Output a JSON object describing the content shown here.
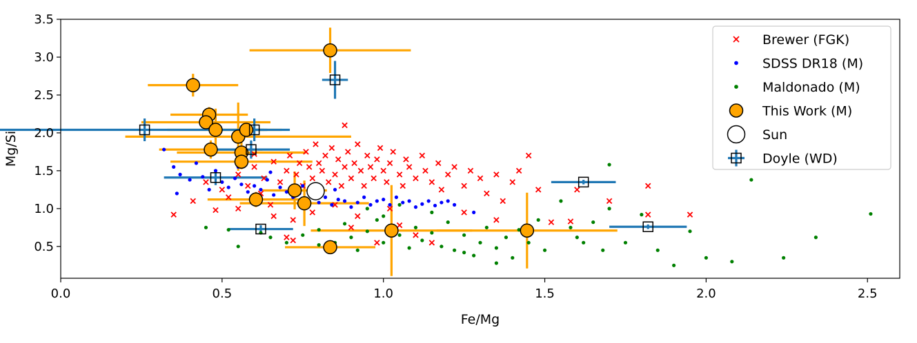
{
  "chart_data": {
    "type": "scatter",
    "title": "",
    "xlabel": "Fe/Mg",
    "ylabel": "Mg/Si",
    "xlim": [
      0.0,
      2.6
    ],
    "ylim": [
      0.08,
      3.5
    ],
    "xticks": [
      "0.0",
      "0.5",
      "1.0",
      "1.5",
      "2.0",
      "2.5"
    ],
    "yticks": [
      "0.5",
      "1.0",
      "1.5",
      "2.0",
      "2.5",
      "3.0",
      "3.5"
    ],
    "grid": false,
    "legend_placement": "top-right",
    "series": [
      {
        "name": "Brewer (FGK)",
        "marker": "x",
        "color": "#ff0000",
        "points": [
          [
            0.35,
            0.92
          ],
          [
            0.41,
            1.1
          ],
          [
            0.45,
            1.35
          ],
          [
            0.48,
            0.98
          ],
          [
            0.5,
            1.25
          ],
          [
            0.52,
            1.15
          ],
          [
            0.55,
            1.45
          ],
          [
            0.58,
            1.3
          ],
          [
            0.6,
            1.55
          ],
          [
            0.62,
            1.2
          ],
          [
            0.63,
            1.4
          ],
          [
            0.65,
            1.05
          ],
          [
            0.66,
            1.62
          ],
          [
            0.68,
            1.35
          ],
          [
            0.7,
            1.5
          ],
          [
            0.71,
            1.7
          ],
          [
            0.72,
            1.2
          ],
          [
            0.73,
            1.45
          ],
          [
            0.74,
            1.6
          ],
          [
            0.75,
            1.3
          ],
          [
            0.76,
            1.75
          ],
          [
            0.77,
            1.55
          ],
          [
            0.78,
            1.4
          ],
          [
            0.79,
            1.85
          ],
          [
            0.8,
            1.25
          ],
          [
            0.8,
            1.6
          ],
          [
            0.81,
            1.5
          ],
          [
            0.82,
            1.7
          ],
          [
            0.83,
            1.35
          ],
          [
            0.84,
            1.8
          ],
          [
            0.85,
            1.45
          ],
          [
            0.86,
            1.65
          ],
          [
            0.87,
            1.3
          ],
          [
            0.88,
            1.55
          ],
          [
            0.88,
            2.1
          ],
          [
            0.89,
            1.75
          ],
          [
            0.9,
            1.4
          ],
          [
            0.91,
            1.6
          ],
          [
            0.92,
            1.85
          ],
          [
            0.93,
            1.5
          ],
          [
            0.94,
            1.3
          ],
          [
            0.95,
            1.7
          ],
          [
            0.96,
            1.55
          ],
          [
            0.97,
            1.4
          ],
          [
            0.98,
            1.65
          ],
          [
            0.99,
            1.8
          ],
          [
            1.0,
            1.5
          ],
          [
            1.01,
            1.35
          ],
          [
            1.02,
            1.6
          ],
          [
            1.03,
            1.75
          ],
          [
            1.05,
            1.45
          ],
          [
            1.06,
            1.3
          ],
          [
            1.07,
            1.65
          ],
          [
            1.08,
            1.55
          ],
          [
            1.1,
            1.4
          ],
          [
            1.12,
            1.7
          ],
          [
            1.13,
            1.5
          ],
          [
            1.15,
            1.35
          ],
          [
            1.17,
            1.6
          ],
          [
            1.18,
            1.25
          ],
          [
            1.2,
            1.45
          ],
          [
            1.22,
            1.55
          ],
          [
            1.25,
            1.3
          ],
          [
            1.27,
            1.5
          ],
          [
            1.3,
            1.4
          ],
          [
            1.32,
            1.2
          ],
          [
            1.35,
            1.45
          ],
          [
            1.37,
            1.1
          ],
          [
            1.4,
            1.35
          ],
          [
            1.42,
            1.5
          ],
          [
            1.45,
            1.7
          ],
          [
            1.48,
            1.25
          ],
          [
            1.52,
            0.82
          ],
          [
            1.58,
            0.83
          ],
          [
            1.6,
            1.25
          ],
          [
            1.7,
            1.1
          ],
          [
            1.82,
            0.92
          ],
          [
            1.82,
            1.3
          ],
          [
            1.95,
            0.92
          ],
          [
            0.72,
            0.85
          ],
          [
            0.78,
            0.95
          ],
          [
            0.85,
            1.05
          ],
          [
            0.92,
            0.9
          ],
          [
            1.05,
            0.78
          ],
          [
            1.1,
            0.65
          ],
          [
            1.15,
            0.55
          ],
          [
            0.9,
            0.75
          ],
          [
            0.98,
            0.55
          ],
          [
            0.72,
            0.58
          ],
          [
            0.55,
            1.0
          ],
          [
            0.66,
            0.9
          ],
          [
            0.6,
            1.72
          ],
          [
            0.7,
            0.62
          ],
          [
            1.25,
            0.95
          ],
          [
            1.35,
            0.85
          ],
          [
            1.02,
            1.0
          ]
        ]
      },
      {
        "name": "SDSS DR18 (M)",
        "marker": "dot",
        "color": "#0000ff",
        "points": [
          [
            0.32,
            1.78
          ],
          [
            0.35,
            1.55
          ],
          [
            0.37,
            1.45
          ],
          [
            0.4,
            1.38
          ],
          [
            0.42,
            1.6
          ],
          [
            0.44,
            1.42
          ],
          [
            0.46,
            1.25
          ],
          [
            0.48,
            1.5
          ],
          [
            0.5,
            1.35
          ],
          [
            0.52,
            1.28
          ],
          [
            0.54,
            1.4
          ],
          [
            0.56,
            1.32
          ],
          [
            0.58,
            1.22
          ],
          [
            0.6,
            1.3
          ],
          [
            0.62,
            1.25
          ],
          [
            0.64,
            1.38
          ],
          [
            0.66,
            1.18
          ],
          [
            0.68,
            1.28
          ],
          [
            0.7,
            1.22
          ],
          [
            0.72,
            1.15
          ],
          [
            0.74,
            1.2
          ],
          [
            0.76,
            1.1
          ],
          [
            0.78,
            1.18
          ],
          [
            0.8,
            1.08
          ],
          [
            0.82,
            1.15
          ],
          [
            0.84,
            1.05
          ],
          [
            0.86,
            1.12
          ],
          [
            0.88,
            1.1
          ],
          [
            0.9,
            1.02
          ],
          [
            0.92,
            1.08
          ],
          [
            0.94,
            1.15
          ],
          [
            0.96,
            1.05
          ],
          [
            0.98,
            1.1
          ],
          [
            1.0,
            1.12
          ],
          [
            1.02,
            1.05
          ],
          [
            1.04,
            1.15
          ],
          [
            1.06,
            1.08
          ],
          [
            1.08,
            1.1
          ],
          [
            1.1,
            1.02
          ],
          [
            1.12,
            1.06
          ],
          [
            1.14,
            1.1
          ],
          [
            1.16,
            1.04
          ],
          [
            1.18,
            1.08
          ],
          [
            1.2,
            1.1
          ],
          [
            1.22,
            1.05
          ],
          [
            1.28,
            0.95
          ],
          [
            0.36,
            1.2
          ],
          [
            0.45,
            1.8
          ],
          [
            0.55,
            1.55
          ],
          [
            0.65,
            1.48
          ],
          [
            0.75,
            1.3
          ],
          [
            0.85,
            1.25
          ]
        ]
      },
      {
        "name": "Maldonado (M)",
        "marker": "dot",
        "color": "#008000",
        "points": [
          [
            0.45,
            0.75
          ],
          [
            0.52,
            0.72
          ],
          [
            0.55,
            0.5
          ],
          [
            0.62,
            0.68
          ],
          [
            0.65,
            0.62
          ],
          [
            0.7,
            0.55
          ],
          [
            0.75,
            0.65
          ],
          [
            0.8,
            0.72
          ],
          [
            0.85,
            0.55
          ],
          [
            0.88,
            0.8
          ],
          [
            0.9,
            0.62
          ],
          [
            0.92,
            0.45
          ],
          [
            0.95,
            0.7
          ],
          [
            0.98,
            0.85
          ],
          [
            1.0,
            0.55
          ],
          [
            1.05,
            0.65
          ],
          [
            1.08,
            0.48
          ],
          [
            1.1,
            0.75
          ],
          [
            1.12,
            0.58
          ],
          [
            1.15,
            0.68
          ],
          [
            1.18,
            0.5
          ],
          [
            1.2,
            0.82
          ],
          [
            1.22,
            0.45
          ],
          [
            1.25,
            0.65
          ],
          [
            1.28,
            0.38
          ],
          [
            1.3,
            0.55
          ],
          [
            1.32,
            0.75
          ],
          [
            1.35,
            0.48
          ],
          [
            1.38,
            0.62
          ],
          [
            1.4,
            0.35
          ],
          [
            1.42,
            0.72
          ],
          [
            1.45,
            0.55
          ],
          [
            1.48,
            0.85
          ],
          [
            1.5,
            0.45
          ],
          [
            1.55,
            1.1
          ],
          [
            1.58,
            0.75
          ],
          [
            1.6,
            0.62
          ],
          [
            1.65,
            0.82
          ],
          [
            1.68,
            0.45
          ],
          [
            1.7,
            1.58
          ],
          [
            1.7,
            1.0
          ],
          [
            1.75,
            0.55
          ],
          [
            1.8,
            0.92
          ],
          [
            1.85,
            0.45
          ],
          [
            1.9,
            0.25
          ],
          [
            1.95,
            0.7
          ],
          [
            2.0,
            0.35
          ],
          [
            2.08,
            0.3
          ],
          [
            2.14,
            1.38
          ],
          [
            2.24,
            0.35
          ],
          [
            2.34,
            0.62
          ],
          [
            2.51,
            0.93
          ],
          [
            1.0,
            0.9
          ],
          [
            0.95,
            1.0
          ],
          [
            1.05,
            1.05
          ],
          [
            1.15,
            0.95
          ],
          [
            1.25,
            0.42
          ],
          [
            1.35,
            0.28
          ],
          [
            0.8,
            0.52
          ],
          [
            1.62,
            0.55
          ]
        ]
      },
      {
        "name": "This Work (M)",
        "marker": "circle",
        "color": "#ffa500",
        "error_color": "#ffa500",
        "points": [
          {
            "x": 0.41,
            "y": 2.63,
            "xerr": 0.14,
            "yerr": 0.15
          },
          {
            "x": 0.835,
            "y": 3.09,
            "xerr": 0.25,
            "yerr": 0.3
          },
          {
            "x": 0.46,
            "y": 2.24,
            "xerr": 0.12,
            "yerr": 0.1
          },
          {
            "x": 0.45,
            "y": 2.14,
            "xerr": 0.2,
            "yerr": 0.1
          },
          {
            "x": 0.48,
            "y": 2.04,
            "xerr": 0.15,
            "yerr": 0.28
          },
          {
            "x": 0.55,
            "y": 1.95,
            "xerr": 0.35,
            "yerr": 0.45
          },
          {
            "x": 0.575,
            "y": 2.04,
            "xerr": 0.11,
            "yerr": 0.1
          },
          {
            "x": 0.465,
            "y": 1.78,
            "xerr": 0.16,
            "yerr": 0.12
          },
          {
            "x": 0.56,
            "y": 1.74,
            "xerr": 0.2,
            "yerr": 0.15
          },
          {
            "x": 0.56,
            "y": 1.62,
            "xerr": 0.22,
            "yerr": 0.1
          },
          {
            "x": 0.725,
            "y": 1.24,
            "xerr": 0.1,
            "yerr": 0.25
          },
          {
            "x": 0.605,
            "y": 1.12,
            "xerr": 0.15,
            "yerr": 0.1
          },
          {
            "x": 0.755,
            "y": 1.07,
            "xerr": 0.2,
            "yerr": 0.3
          },
          {
            "x": 0.835,
            "y": 0.49,
            "xerr": 0.14,
            "yerr": 0.08
          },
          {
            "x": 1.025,
            "y": 0.71,
            "xerr": 0.25,
            "yerr": 0.6
          },
          {
            "x": 1.445,
            "y": 0.71,
            "xerr": 0.28,
            "yerr": 0.5
          }
        ]
      },
      {
        "name": "Sun",
        "marker": "circle-open",
        "color": "#ffffff",
        "points": [
          {
            "x": 0.79,
            "y": 1.23
          }
        ]
      },
      {
        "name": "Doyle (WD)",
        "marker": "square-open",
        "color": "#000000",
        "error_color": "#1f77b4",
        "points": [
          {
            "x": 0.26,
            "y": 2.04,
            "xerr": 0.45,
            "yerr": 0.15
          },
          {
            "x": 0.6,
            "y": 2.04,
            "xerr": 0.04,
            "yerr": 0.15
          },
          {
            "x": 0.59,
            "y": 1.78,
            "xerr": 0.12,
            "yerr": 0.12
          },
          {
            "x": 0.48,
            "y": 1.41,
            "xerr": 0.16,
            "yerr": 0.1
          },
          {
            "x": 0.85,
            "y": 2.7,
            "xerr": 0.04,
            "yerr": 0.25
          },
          {
            "x": 0.62,
            "y": 0.73,
            "xerr": 0.1,
            "yerr": 0.05
          },
          {
            "x": 1.62,
            "y": 1.35,
            "xerr": 0.1,
            "yerr": 0.03
          },
          {
            "x": 1.82,
            "y": 0.76,
            "xerr": 0.12,
            "yerr": 0.03
          }
        ]
      }
    ]
  }
}
